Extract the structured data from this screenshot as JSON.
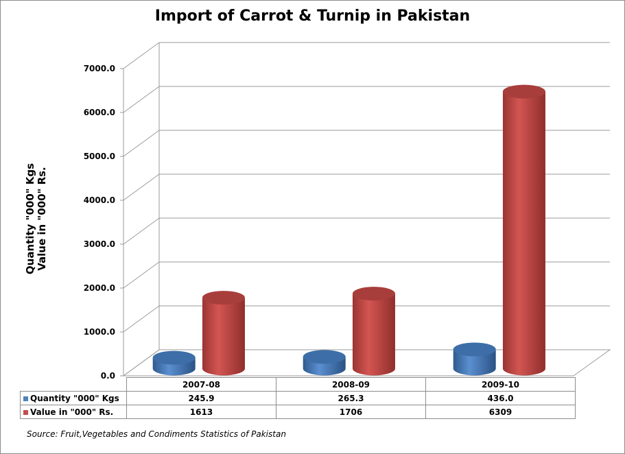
{
  "chart_data": {
    "type": "bar",
    "title": "Import of Carrot & Turnip in Pakistan",
    "ylabel_lines": [
      "Quantity \"000\" Kgs",
      "Value in \"000\" Rs."
    ],
    "categories": [
      "2007-08",
      "2008-09",
      "2009-10"
    ],
    "series": [
      {
        "name": "Quantity \"000\" Kgs",
        "values": [
          245.9,
          265.3,
          436.0
        ],
        "display": [
          "245.9",
          "265.3",
          "436.0"
        ],
        "color": "#4f81bd"
      },
      {
        "name": "Value in \"000\" Rs.",
        "values": [
          1613,
          1706,
          6309
        ],
        "display": [
          "1613",
          "1706",
          "6309"
        ],
        "color": "#c0504d"
      }
    ],
    "ylim": [
      0,
      7000
    ],
    "yticks": [
      "0.0",
      "1000.0",
      "2000.0",
      "3000.0",
      "4000.0",
      "5000.0",
      "6000.0",
      "7000.0"
    ],
    "grid": true,
    "legend": "data-table"
  },
  "source": "Source: Fruit,Vegetables and Condiments Statistics of Pakistan"
}
